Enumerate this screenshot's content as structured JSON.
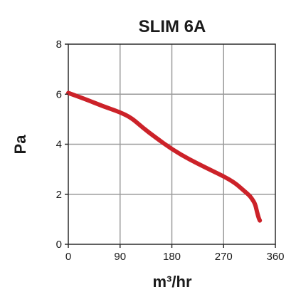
{
  "chart_data": {
    "type": "line",
    "title": "SLIM 6A",
    "xlabel": "m³/hr",
    "ylabel": "Pa",
    "xlim": [
      0,
      360
    ],
    "ylim": [
      0,
      8
    ],
    "x_ticks": [
      "0",
      "90",
      "180",
      "270",
      "360"
    ],
    "y_ticks": [
      "0",
      "2",
      "4",
      "6",
      "8"
    ],
    "grid": true,
    "legend": "none",
    "colors": {
      "series": "#cc2229",
      "grid": "#9a9a9a",
      "frame": "#2b2b2b",
      "text": "#1a1a1a"
    },
    "series": [
      {
        "points": [
          [
            0,
            6.05
          ],
          [
            30,
            5.8
          ],
          [
            60,
            5.52
          ],
          [
            90,
            5.28
          ],
          [
            110,
            5.05
          ],
          [
            130,
            4.65
          ],
          [
            150,
            4.3
          ],
          [
            180,
            3.8
          ],
          [
            210,
            3.4
          ],
          [
            240,
            3.05
          ],
          [
            270,
            2.72
          ],
          [
            290,
            2.45
          ],
          [
            305,
            2.15
          ],
          [
            315,
            1.95
          ],
          [
            320,
            1.8
          ],
          [
            325,
            1.6
          ],
          [
            328,
            1.3
          ],
          [
            331,
            1.05
          ],
          [
            333,
            0.95
          ]
        ]
      }
    ]
  }
}
